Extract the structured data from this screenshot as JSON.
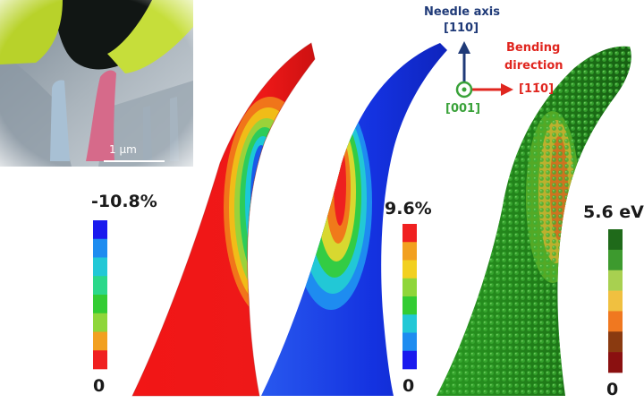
{
  "inset": {
    "scale_bar_label": "1 µm"
  },
  "axes": {
    "needle_axis_label": "Needle axis",
    "needle_axis_index": "[110]",
    "bending_label_line1": "Bending",
    "bending_label_line2": "direction",
    "bending_index": "[11̄0]",
    "normal_index": "[001]",
    "colors": {
      "needle": "#1f3a78",
      "bending": "#e0261f",
      "normal": "#3aa23a"
    }
  },
  "colorbars": [
    {
      "top_label": "-10.8%",
      "bottom_label": "0",
      "colors_top_to_bottom": [
        "#1a1aee",
        "#1e8cf0",
        "#22c8d6",
        "#2bd88a",
        "#33cc33",
        "#8fd63a",
        "#f2a020",
        "#f02020"
      ]
    },
    {
      "top_label": "9.6%",
      "bottom_label": "0",
      "colors_top_to_bottom": [
        "#f02020",
        "#f2a020",
        "#f2d020",
        "#8fd63a",
        "#33cc33",
        "#22c8d6",
        "#1e8cf0",
        "#1a1aee"
      ]
    },
    {
      "top_label": "5.6 eV",
      "bottom_label": "0",
      "colors_top_to_bottom": [
        "#1f6a1a",
        "#3d9a2e",
        "#a8d050",
        "#f0c040",
        "#f07820",
        "#8a3a10",
        "#8a1010"
      ]
    }
  ]
}
